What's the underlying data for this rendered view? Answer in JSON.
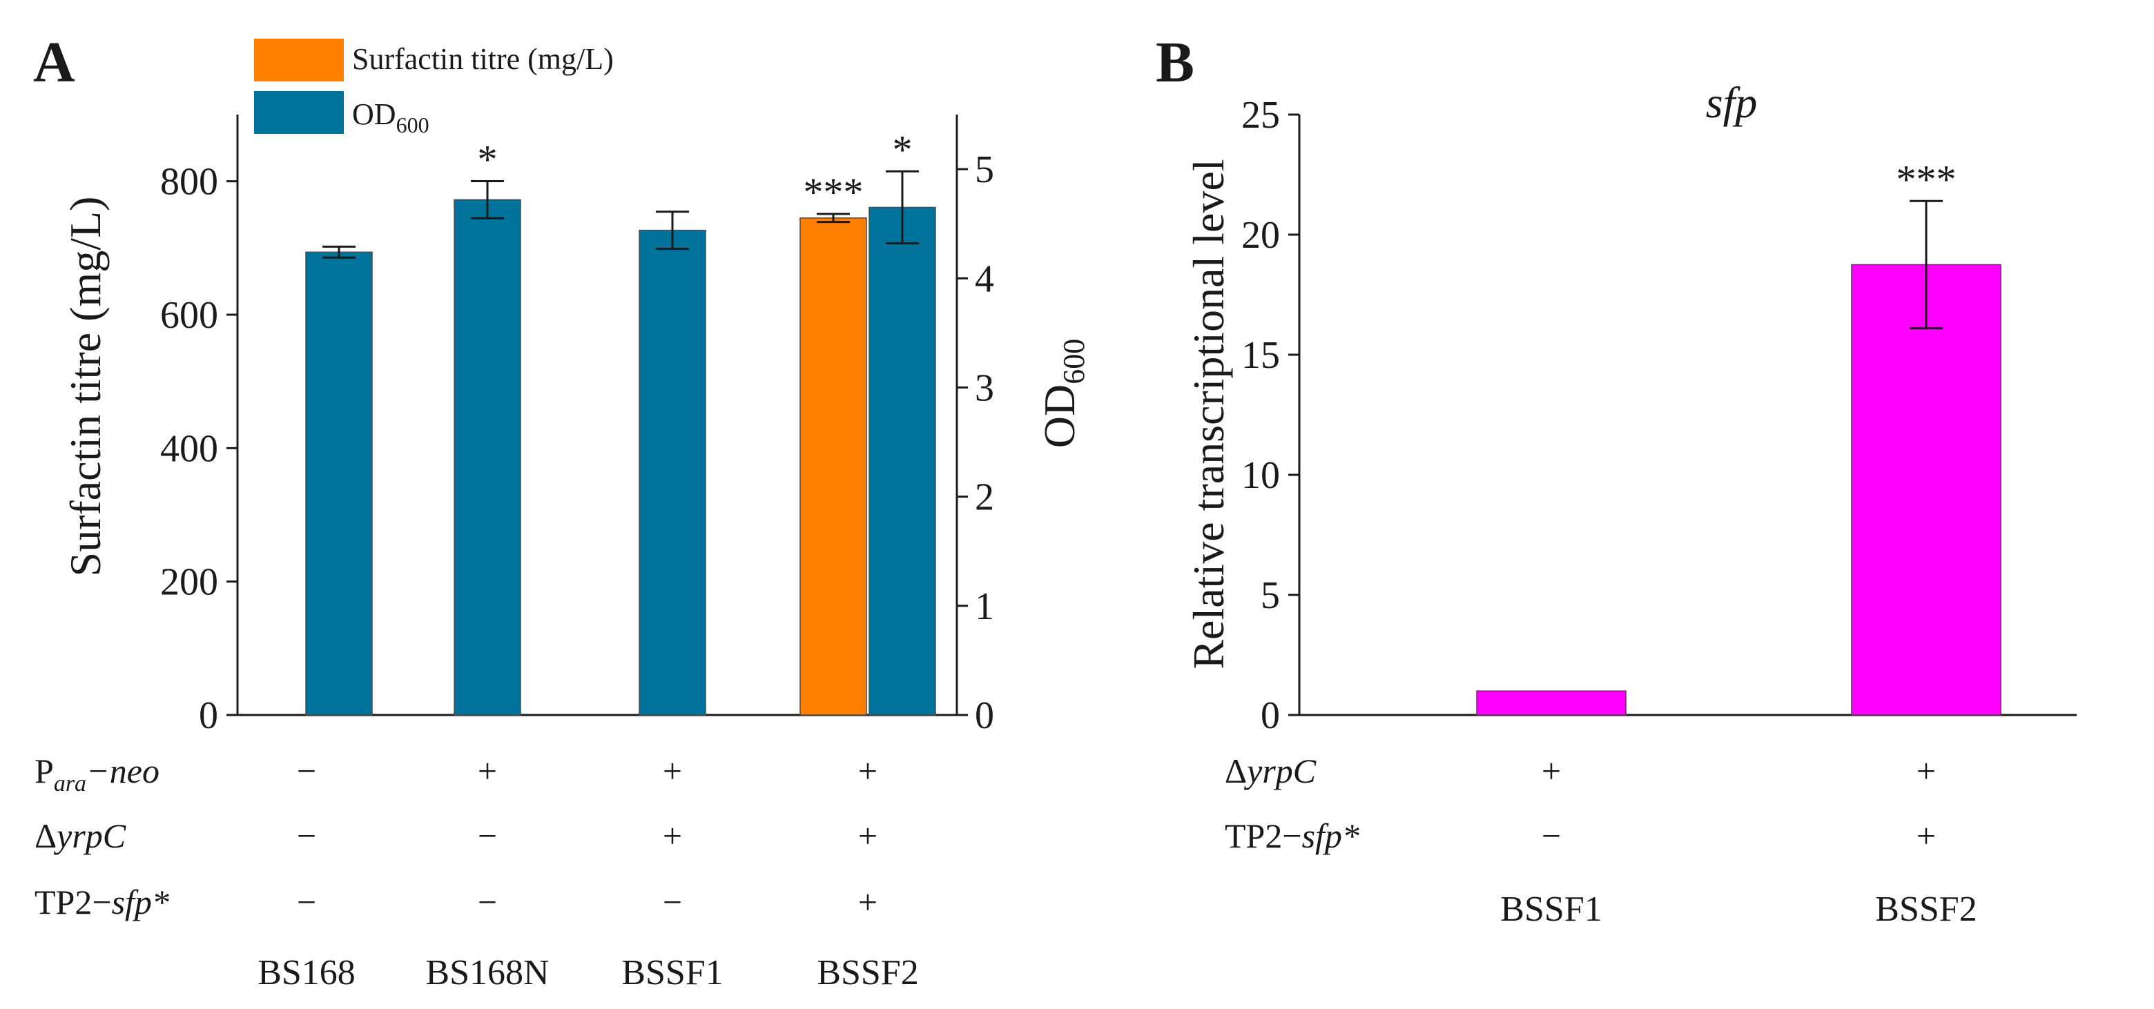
{
  "chart_data": [
    {
      "panel": "A",
      "type": "bar",
      "categories": [
        "BS168",
        "BS168N",
        "BSSF1",
        "BSSF2"
      ],
      "ylabel": "Surfactin titre (mg/L)",
      "y2label": "OD600",
      "ylim": [
        0,
        900
      ],
      "yticks": [
        0,
        200,
        400,
        600,
        800
      ],
      "y2lim": [
        0,
        5.5
      ],
      "y2ticks": [
        0,
        1,
        2,
        3,
        4,
        5
      ],
      "legend": [
        {
          "label": "Surfactin titre (mg/L)",
          "color": "#ff8000"
        },
        {
          "label": "OD",
          "sub": "600",
          "color": "#00739c"
        }
      ],
      "series": [
        {
          "name": "Surfactin titre (mg/L)",
          "axis": "left",
          "color": "#ff8000",
          "values": [
            null,
            null,
            null,
            745
          ],
          "errors": [
            null,
            null,
            null,
            6
          ],
          "stars": [
            "",
            "",
            "",
            "***"
          ]
        },
        {
          "name": "OD600",
          "axis": "right",
          "color": "#00739c",
          "values": [
            4.24,
            4.72,
            4.44,
            4.65
          ],
          "errors": [
            0.05,
            0.17,
            0.17,
            0.33
          ],
          "stars": [
            "",
            "*",
            "",
            "*"
          ]
        }
      ],
      "rows": [
        {
          "label_main": "P",
          "label_sub": "ara",
          "label_rest": "−neo",
          "marks": [
            "−",
            "+",
            "+",
            "+"
          ]
        },
        {
          "label_main": "Δ",
          "label_ital": "yrpC",
          "marks": [
            "−",
            "−",
            "+",
            "+"
          ]
        },
        {
          "label_main": "TP2−",
          "label_ital": "sfp*",
          "marks": [
            "−",
            "−",
            "−",
            "+"
          ]
        }
      ]
    },
    {
      "panel": "B",
      "type": "bar",
      "title": "sfp",
      "categories": [
        "BSSF1",
        "BSSF2"
      ],
      "ylabel": "Relative transcriptional level",
      "ylim": [
        0,
        25
      ],
      "yticks": [
        0,
        5,
        10,
        15,
        20,
        25
      ],
      "series": [
        {
          "name": "sfp",
          "color": "#ff00ff",
          "values": [
            1.0,
            18.75
          ],
          "errors": [
            null,
            2.65
          ],
          "stars": [
            "",
            "***"
          ]
        }
      ],
      "rows": [
        {
          "label_main": "Δ",
          "label_ital": "yrpC",
          "marks": [
            "+",
            "+"
          ]
        },
        {
          "label_main": "TP2−",
          "label_ital": "sfp*",
          "marks": [
            "−",
            "+"
          ]
        }
      ]
    }
  ]
}
